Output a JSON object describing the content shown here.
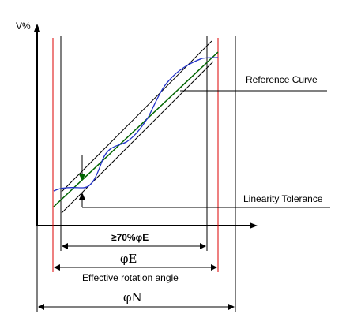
{
  "diagram": {
    "y_axis_label": "V%",
    "reference_curve_label": "Reference Curve",
    "linearity_tolerance_label": "Linearity Tolerance",
    "dim_70_label": "≥70%φE",
    "dim_phiE_label": "φE",
    "effective_angle_label": "Effective rotation angle",
    "dim_phiN_label": "φN"
  },
  "colors": {
    "axis": "#000000",
    "reference_line": "#006400",
    "tolerance_band": "#000000",
    "measured_curve": "#2030c8",
    "effective_limit": "#dd0000",
    "arrow_marker": "#006400"
  }
}
